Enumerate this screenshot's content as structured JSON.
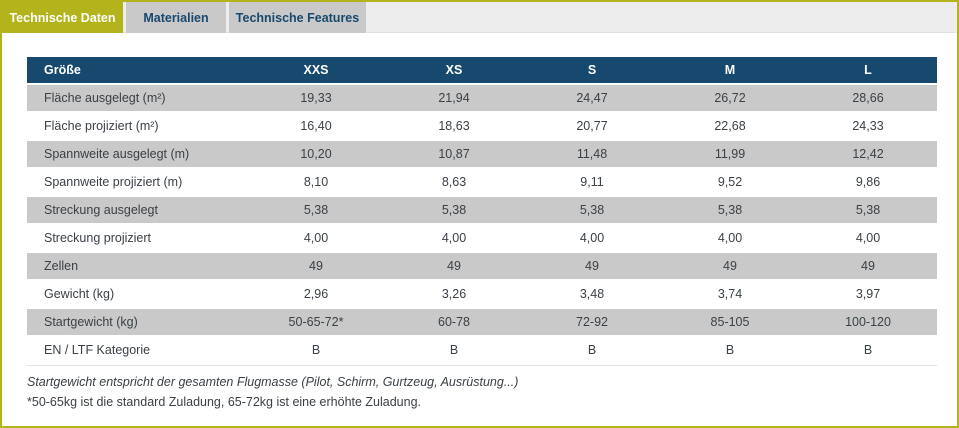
{
  "tabs": [
    {
      "label": "Technische Daten",
      "active": true
    },
    {
      "label": "Materialien",
      "active": false
    },
    {
      "label": "Technische Features",
      "active": false
    }
  ],
  "table": {
    "header": [
      "Größe",
      "XXS",
      "XS",
      "S",
      "M",
      "L"
    ],
    "rows": [
      {
        "label": "Fläche ausgelegt (m²)",
        "values": [
          "19,33",
          "21,94",
          "24,47",
          "26,72",
          "28,66"
        ]
      },
      {
        "label": "Fläche projiziert (m²)",
        "values": [
          "16,40",
          "18,63",
          "20,77",
          "22,68",
          "24,33"
        ]
      },
      {
        "label": "Spannweite ausgelegt (m)",
        "values": [
          "10,20",
          "10,87",
          "11,48",
          "11,99",
          "12,42"
        ]
      },
      {
        "label": "Spannweite projiziert (m)",
        "values": [
          "8,10",
          "8,63",
          "9,11",
          "9,52",
          "9,86"
        ]
      },
      {
        "label": "Streckung ausgelegt",
        "values": [
          "5,38",
          "5,38",
          "5,38",
          "5,38",
          "5,38"
        ]
      },
      {
        "label": "Streckung projiziert",
        "values": [
          "4,00",
          "4,00",
          "4,00",
          "4,00",
          "4,00"
        ]
      },
      {
        "label": "Zellen",
        "values": [
          "49",
          "49",
          "49",
          "49",
          "49"
        ]
      },
      {
        "label": "Gewicht (kg)",
        "values": [
          "2,96",
          "3,26",
          "3,48",
          "3,74",
          "3,97"
        ]
      },
      {
        "label": "Startgewicht (kg)",
        "values": [
          "50-65-72*",
          "60-78",
          "72-92",
          "85-105",
          "100-120"
        ]
      },
      {
        "label": "EN / LTF Kategorie",
        "values": [
          "B",
          "B",
          "B",
          "B",
          "B"
        ]
      }
    ]
  },
  "notes": {
    "flight_mass": "Startgewicht entspricht der gesamten Flugmasse (Pilot, Schirm, Gurtzeug, Ausrüstung...)",
    "loading": "*50-65kg ist die standard Zuladung, 65-72kg ist eine erhöhte Zuladung."
  },
  "colors": {
    "accent_yellow": "#b3b41c",
    "header_blue": "#17496e",
    "row_gray": "#c9c9c9",
    "tab_strip_gray": "#ededed",
    "text_dark": "#3a4147"
  }
}
